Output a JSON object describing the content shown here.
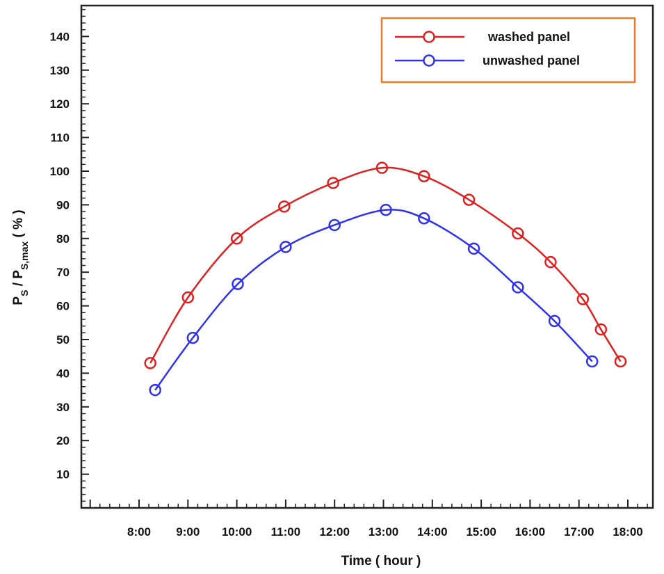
{
  "chart_data": {
    "type": "line",
    "xlabel": "Time ( hour )",
    "ylabel": "P_S / P_S,max (%)",
    "ylabel_parts": {
      "p1": "P",
      "s1": "S",
      "slash": " / P",
      "s2": "S,max",
      "unit": " ( % )"
    },
    "x_ticks": [
      "8:00",
      "9:00",
      "10:00",
      "11:00",
      "12:00",
      "13:00",
      "14:00",
      "15:00",
      "16:00",
      "17:00",
      "18:00"
    ],
    "x_range_hours": [
      7.0,
      18.5
    ],
    "y_ticks": [
      10,
      20,
      30,
      40,
      50,
      60,
      70,
      80,
      90,
      100,
      110,
      120,
      130,
      140
    ],
    "ylim": [
      0,
      150
    ],
    "legend_position": "top-right",
    "series": [
      {
        "name": "washed panel",
        "color": "#e02020",
        "points": [
          {
            "x": 8.23,
            "y": 43
          },
          {
            "x": 9.0,
            "y": 62.5
          },
          {
            "x": 10.0,
            "y": 80
          },
          {
            "x": 10.97,
            "y": 89.5
          },
          {
            "x": 11.97,
            "y": 96.5
          },
          {
            "x": 12.97,
            "y": 101
          },
          {
            "x": 13.83,
            "y": 98.5
          },
          {
            "x": 14.75,
            "y": 91.5
          },
          {
            "x": 15.75,
            "y": 81.5
          },
          {
            "x": 16.42,
            "y": 73
          },
          {
            "x": 17.08,
            "y": 62
          },
          {
            "x": 17.45,
            "y": 53
          },
          {
            "x": 17.85,
            "y": 43.5
          }
        ]
      },
      {
        "name": "unwashed panel",
        "color": "#3030f0",
        "points": [
          {
            "x": 8.33,
            "y": 35
          },
          {
            "x": 9.1,
            "y": 50.5
          },
          {
            "x": 10.02,
            "y": 66.5
          },
          {
            "x": 11.0,
            "y": 77.5
          },
          {
            "x": 12.0,
            "y": 84
          },
          {
            "x": 13.05,
            "y": 88.5
          },
          {
            "x": 13.83,
            "y": 86
          },
          {
            "x": 14.85,
            "y": 77
          },
          {
            "x": 15.75,
            "y": 65.5
          },
          {
            "x": 16.5,
            "y": 55.5
          },
          {
            "x": 17.27,
            "y": 43.5
          }
        ]
      }
    ]
  }
}
